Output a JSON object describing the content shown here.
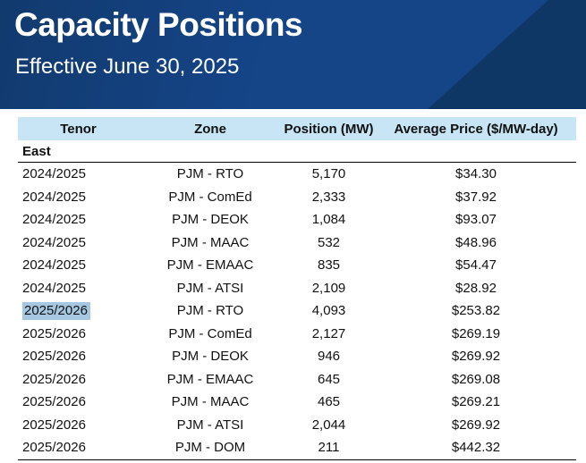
{
  "header": {
    "title": "Capacity Positions",
    "subtitle": "Effective June 30, 2025"
  },
  "table": {
    "columns": [
      "Tenor",
      "Zone",
      "Position (MW)",
      "Average Price ($/MW-day)"
    ],
    "section": "East",
    "rows": [
      {
        "tenor": "2024/2025",
        "zone": "PJM - RTO",
        "position": "5,170",
        "price": "$34.30",
        "tenor_highlighted": false
      },
      {
        "tenor": "2024/2025",
        "zone": "PJM - ComEd",
        "position": "2,333",
        "price": "$37.92",
        "tenor_highlighted": false
      },
      {
        "tenor": "2024/2025",
        "zone": "PJM - DEOK",
        "position": "1,084",
        "price": "$93.07",
        "tenor_highlighted": false
      },
      {
        "tenor": "2024/2025",
        "zone": "PJM - MAAC",
        "position": "532",
        "price": "$48.96",
        "tenor_highlighted": false
      },
      {
        "tenor": "2024/2025",
        "zone": "PJM - EMAAC",
        "position": "835",
        "price": "$54.47",
        "tenor_highlighted": false
      },
      {
        "tenor": "2024/2025",
        "zone": "PJM - ATSI",
        "position": "2,109",
        "price": "$28.92",
        "tenor_highlighted": false
      },
      {
        "tenor": "2025/2026",
        "zone": "PJM - RTO",
        "position": "4,093",
        "price": "$253.82",
        "tenor_highlighted": true
      },
      {
        "tenor": "2025/2026",
        "zone": "PJM - ComEd",
        "position": "2,127",
        "price": "$269.19",
        "tenor_highlighted": false
      },
      {
        "tenor": "2025/2026",
        "zone": "PJM - DEOK",
        "position": "946",
        "price": "$269.92",
        "tenor_highlighted": false
      },
      {
        "tenor": "2025/2026",
        "zone": "PJM - EMAAC",
        "position": "645",
        "price": "$269.08",
        "tenor_highlighted": false
      },
      {
        "tenor": "2025/2026",
        "zone": "PJM - MAAC",
        "position": "465",
        "price": "$269.21",
        "tenor_highlighted": false
      },
      {
        "tenor": "2025/2026",
        "zone": "PJM - ATSI",
        "position": "2,044",
        "price": "$269.92",
        "tenor_highlighted": false
      },
      {
        "tenor": "2025/2026",
        "zone": "PJM - DOM",
        "position": "211",
        "price": "$442.32",
        "tenor_highlighted": false
      }
    ]
  },
  "colors": {
    "navy_main": "#154487",
    "navy_dark_edge": "#113a6e",
    "navy_shade": "#0f3766",
    "table_header_blue": "#c7e5f5",
    "selection_highlight_blue": "#a6c7e2",
    "text": "#111111"
  }
}
